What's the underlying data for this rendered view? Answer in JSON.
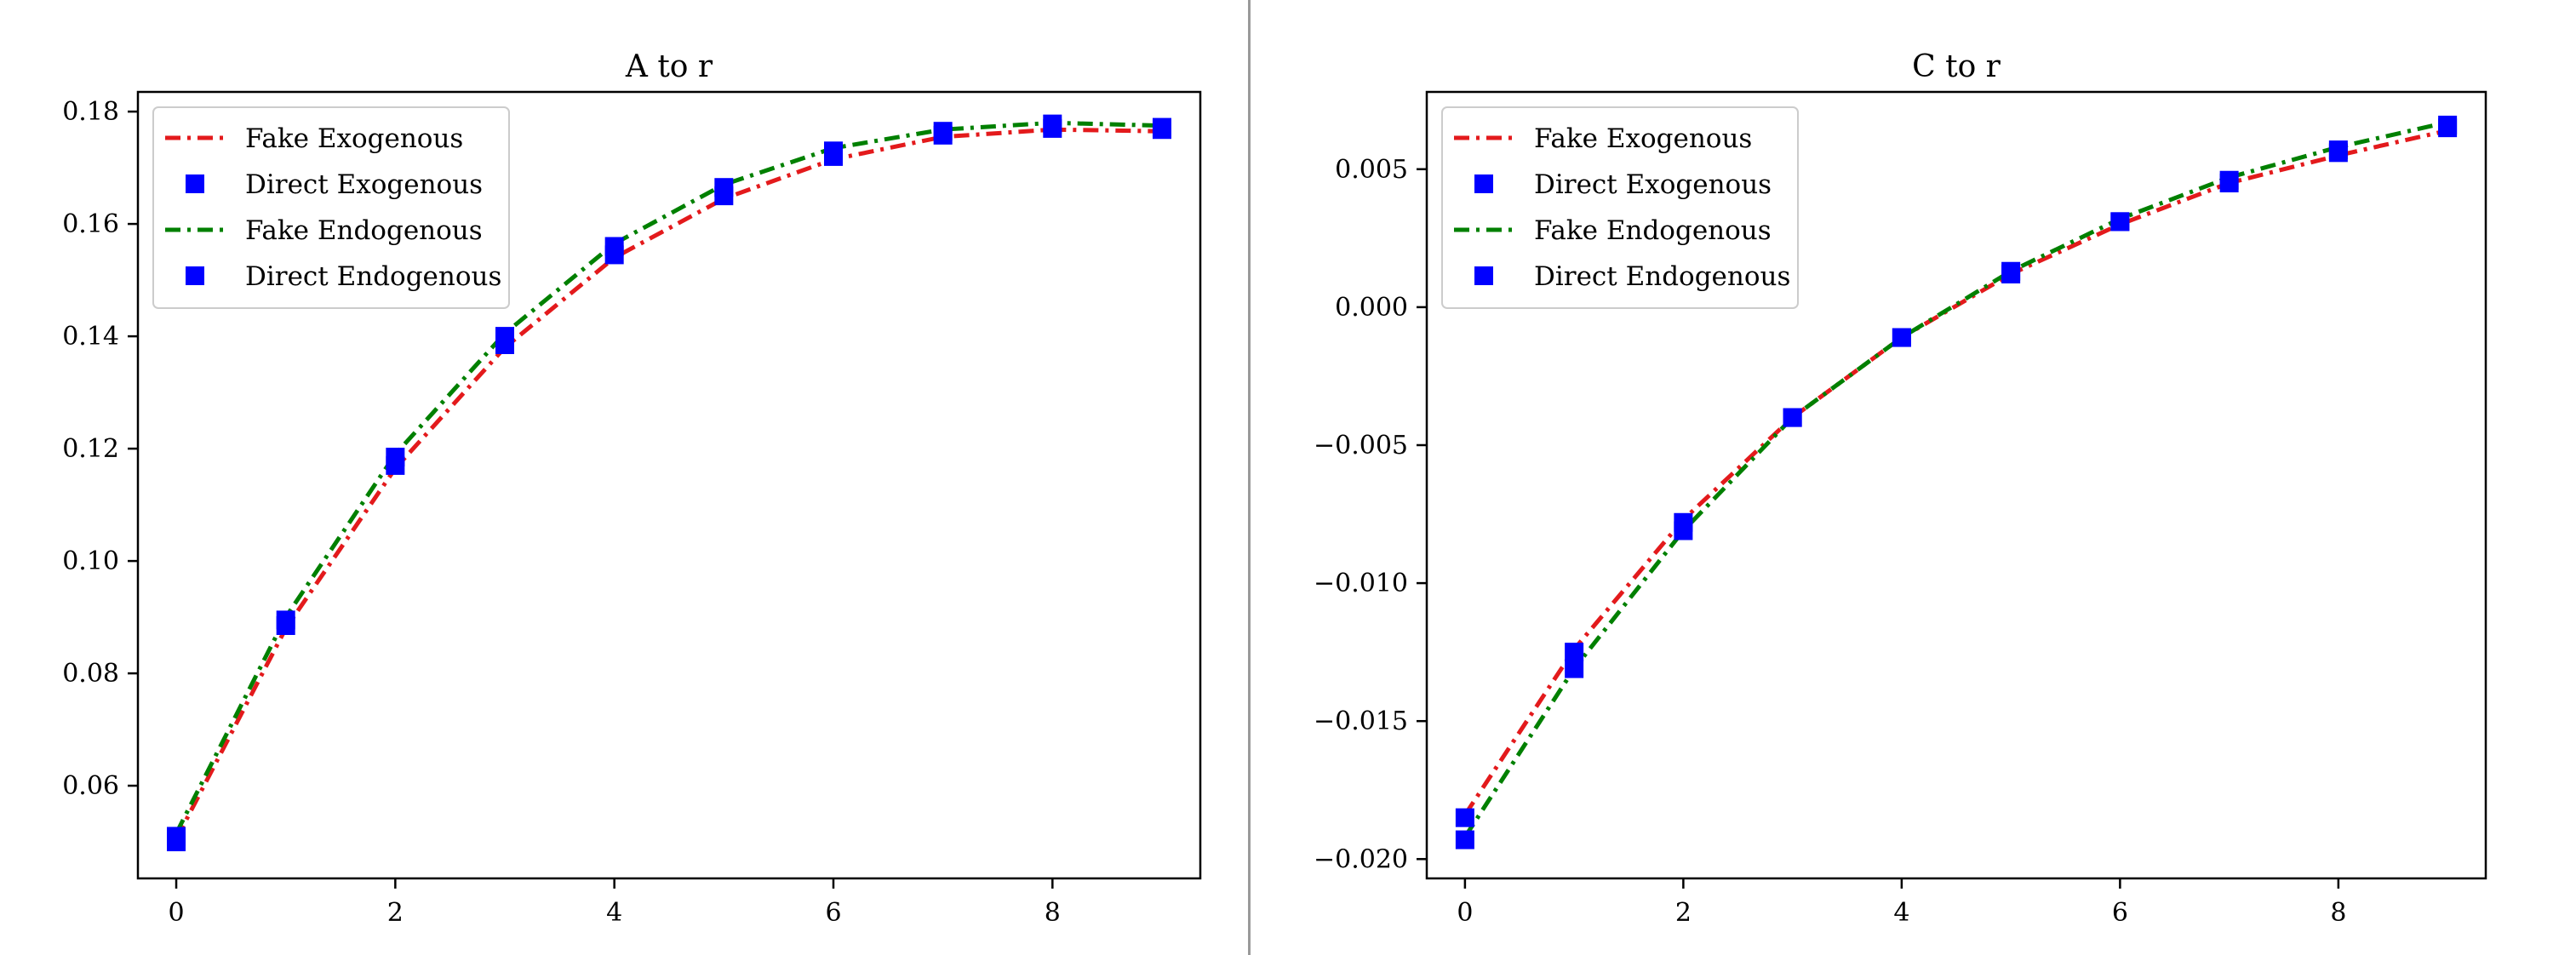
{
  "chart_data": [
    {
      "type": "line",
      "title": "A to r",
      "xlabel": "",
      "ylabel": "",
      "xlim": [
        -0.35,
        9.35
      ],
      "ylim": [
        0.0435,
        0.1835
      ],
      "xticks": [
        0,
        2,
        4,
        6,
        8
      ],
      "xtick_labels": [
        "0",
        "2",
        "4",
        "6",
        "8"
      ],
      "yticks": [
        0.06,
        0.08,
        0.1,
        0.12,
        0.14,
        0.16,
        0.18
      ],
      "ytick_labels": [
        "0.06",
        "0.08",
        "0.10",
        "0.12",
        "0.14",
        "0.16",
        "0.18"
      ],
      "grid": false,
      "legend_location": "upper left",
      "x": [
        0,
        1,
        2,
        3,
        4,
        5,
        6,
        7,
        8,
        9
      ],
      "series": [
        {
          "name": "Fake Exogenous",
          "style": "dash-dot line",
          "color": "#e31a1c",
          "values": [
            0.0505,
            0.088,
            0.1165,
            0.138,
            0.154,
            0.1645,
            0.1715,
            0.1755,
            0.1768,
            0.1765
          ]
        },
        {
          "name": "Direct Exogenous",
          "style": "square markers",
          "color": "#0000ff",
          "values": [
            0.05,
            0.0885,
            0.117,
            0.1385,
            0.1545,
            0.165,
            0.172,
            0.1758,
            0.177,
            0.1768
          ]
        },
        {
          "name": "Fake Endogenous",
          "style": "dash-dot line",
          "color": "#008000",
          "values": [
            0.0515,
            0.09,
            0.119,
            0.1405,
            0.1565,
            0.167,
            0.1735,
            0.1768,
            0.178,
            0.1775
          ]
        },
        {
          "name": "Direct Endogenous",
          "style": "square markers",
          "color": "#0000ff",
          "values": [
            0.051,
            0.0895,
            0.1185,
            0.14,
            0.156,
            0.1665,
            0.173,
            0.1765,
            0.1778,
            0.1772
          ]
        }
      ]
    },
    {
      "type": "line",
      "title": "C to r",
      "xlabel": "",
      "ylabel": "",
      "xlim": [
        -0.35,
        9.35
      ],
      "ylim": [
        -0.0207,
        0.0078
      ],
      "xticks": [
        0,
        2,
        4,
        6,
        8
      ],
      "xtick_labels": [
        "0",
        "2",
        "4",
        "6",
        "8"
      ],
      "yticks": [
        -0.02,
        -0.015,
        -0.01,
        -0.005,
        0.0,
        0.005
      ],
      "ytick_labels": [
        "−0.020",
        "−0.015",
        "−0.010",
        "−0.005",
        "0.000",
        "0.005"
      ],
      "grid": false,
      "legend_location": "upper left",
      "x": [
        0,
        1,
        2,
        3,
        4,
        5,
        6,
        7,
        8,
        9
      ],
      "series": [
        {
          "name": "Fake Exogenous",
          "style": "dash-dot line",
          "color": "#e31a1c",
          "values": [
            -0.0184,
            -0.0124,
            -0.0077,
            -0.004,
            -0.0011,
            0.0012,
            0.003,
            0.0045,
            0.0055,
            0.0064
          ]
        },
        {
          "name": "Direct Exogenous",
          "style": "square markers",
          "color": "#0000ff",
          "values": [
            -0.0185,
            -0.0125,
            -0.0078,
            -0.004,
            -0.0011,
            0.0013,
            0.0031,
            0.0046,
            0.0057,
            0.0066
          ]
        },
        {
          "name": "Fake Endogenous",
          "style": "dash-dot line",
          "color": "#008000",
          "values": [
            -0.0192,
            -0.0131,
            -0.0081,
            -0.004,
            -0.0011,
            0.0013,
            0.0032,
            0.0047,
            0.0058,
            0.0067
          ]
        },
        {
          "name": "Direct Endogenous",
          "style": "square markers",
          "color": "#0000ff",
          "values": [
            -0.0193,
            -0.0131,
            -0.0081,
            -0.004,
            -0.0011,
            0.0012,
            0.0031,
            0.0045,
            0.0056,
            0.0065
          ]
        }
      ]
    }
  ]
}
